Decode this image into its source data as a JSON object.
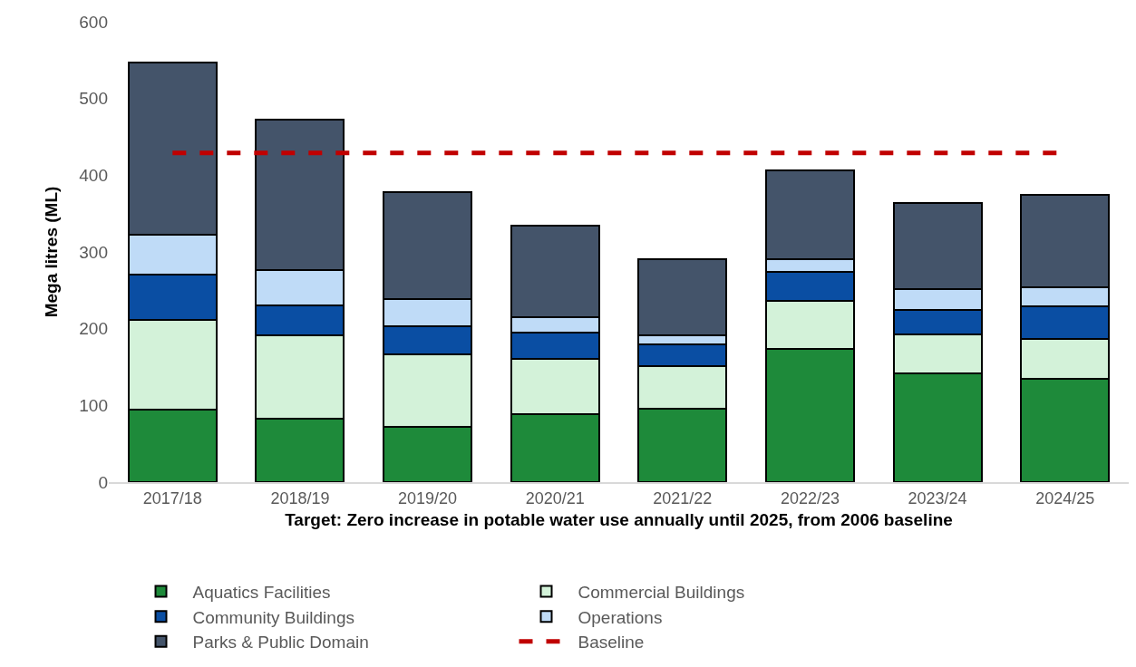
{
  "chart_data": {
    "type": "bar",
    "stacked": true,
    "xlabel": "Target: Zero increase in potable water use annually until 2025, from 2006 baseline",
    "ylabel": "Mega litres (ML)",
    "categories": [
      "2017/18",
      "2018/19",
      "2019/20",
      "2020/21",
      "2021/22",
      "2022/23",
      "2023/24",
      "2024/25"
    ],
    "series": [
      {
        "name": "Aquatics Facilities",
        "color": "#1e8a3a",
        "values": [
          94,
          83,
          72,
          88,
          96,
          174,
          142,
          135
        ]
      },
      {
        "name": "Commercial Buildings",
        "color": "#d3f2d9",
        "values": [
          117,
          108,
          94,
          73,
          55,
          62,
          51,
          52
        ]
      },
      {
        "name": "Community Buildings",
        "color": "#0a4ea3",
        "values": [
          59,
          39,
          37,
          34,
          29,
          38,
          32,
          42
        ]
      },
      {
        "name": "Operations",
        "color": "#bfdbf7",
        "values": [
          53,
          46,
          35,
          20,
          11,
          16,
          27,
          25
        ]
      },
      {
        "name": "Parks & Public Domain",
        "color": "#44546a",
        "values": [
          224,
          197,
          140,
          119,
          100,
          116,
          112,
          120
        ]
      }
    ],
    "ref_lines": [
      {
        "axis": "y",
        "value": 429,
        "label": "Baseline",
        "color": "#c00000",
        "line_style": "dashed"
      }
    ],
    "ylim": [
      0,
      600
    ],
    "yticks": [
      0,
      100,
      200,
      300,
      400,
      500,
      600
    ],
    "grid": false,
    "legend": "bottom"
  }
}
